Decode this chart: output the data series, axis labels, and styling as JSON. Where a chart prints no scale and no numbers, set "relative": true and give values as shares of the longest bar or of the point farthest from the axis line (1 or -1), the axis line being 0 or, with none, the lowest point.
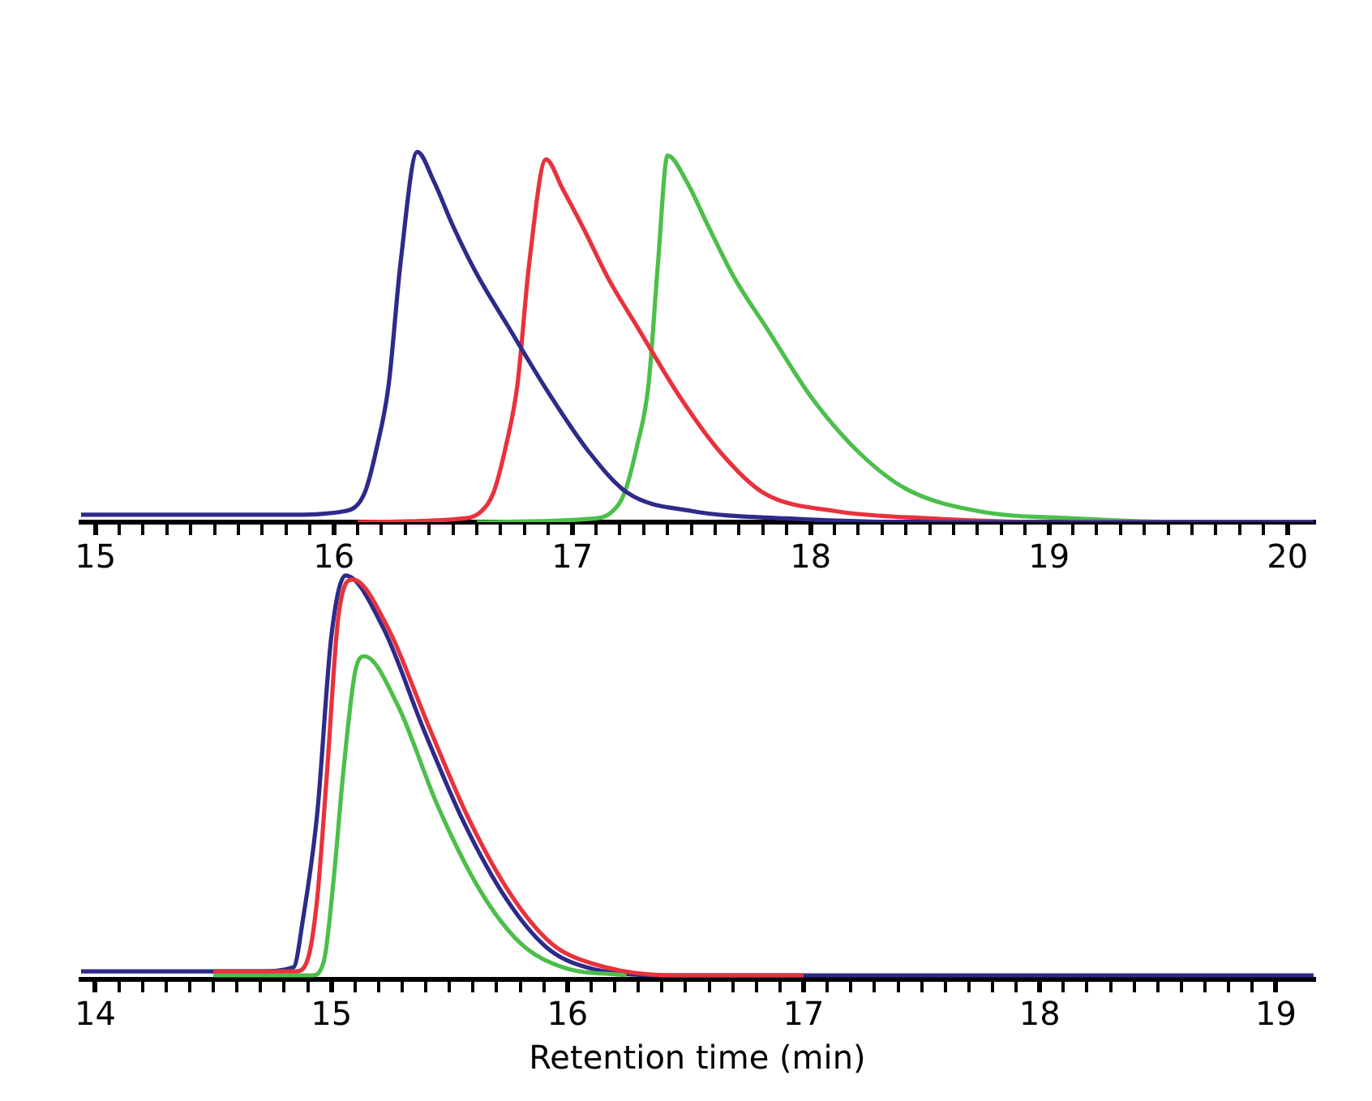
{
  "chart_data": [
    {
      "type": "line",
      "relative": true,
      "grid": false,
      "legend": false,
      "tick_labels": "x",
      "marker": "none",
      "line_style": "solid",
      "xlim": [
        14.94,
        20.11
      ],
      "xticks": [
        15,
        {
          "value": 15.1,
          "label": null
        },
        {
          "value": 15.2,
          "label": null
        },
        {
          "value": 15.3,
          "label": null
        },
        {
          "value": 15.4,
          "label": null
        },
        {
          "value": 15.5,
          "label": null
        },
        {
          "value": 15.6,
          "label": null
        },
        {
          "value": 15.7,
          "label": null
        },
        {
          "value": 15.8,
          "label": null
        },
        {
          "value": 15.9,
          "label": null
        },
        16,
        {
          "value": 16.1,
          "label": null
        },
        {
          "value": 16.2,
          "label": null
        },
        {
          "value": 16.3,
          "label": null
        },
        {
          "value": 16.4,
          "label": null
        },
        {
          "value": 16.5,
          "label": null
        },
        {
          "value": 16.6,
          "label": null
        },
        {
          "value": 16.7,
          "label": null
        },
        {
          "value": 16.8,
          "label": null
        },
        {
          "value": 16.9,
          "label": null
        },
        17,
        {
          "value": 17.1,
          "label": null
        },
        {
          "value": 17.2,
          "label": null
        },
        {
          "value": 17.3,
          "label": null
        },
        {
          "value": 17.4,
          "label": null
        },
        {
          "value": 17.5,
          "label": null
        },
        {
          "value": 17.6,
          "label": null
        },
        {
          "value": 17.7,
          "label": null
        },
        {
          "value": 17.8,
          "label": null
        },
        {
          "value": 17.9,
          "label": null
        },
        18,
        {
          "value": 18.1,
          "label": null
        },
        {
          "value": 18.2,
          "label": null
        },
        {
          "value": 18.3,
          "label": null
        },
        {
          "value": 18.4,
          "label": null
        },
        {
          "value": 18.5,
          "label": null
        },
        {
          "value": 18.6,
          "label": null
        },
        {
          "value": 18.7,
          "label": null
        },
        {
          "value": 18.8,
          "label": null
        },
        {
          "value": 18.9,
          "label": null
        },
        19,
        {
          "value": 19.1,
          "label": null
        },
        {
          "value": 19.2,
          "label": null
        },
        {
          "value": 19.3,
          "label": null
        },
        {
          "value": 19.4,
          "label": null
        },
        {
          "value": 19.5,
          "label": null
        },
        {
          "value": 19.6,
          "label": null
        },
        {
          "value": 19.7,
          "label": null
        },
        {
          "value": 19.8,
          "label": null
        },
        {
          "value": 19.9,
          "label": null
        },
        20
      ],
      "series": [
        {
          "color": "#2e2a8a",
          "x": [
            14.94,
            15.8,
            16.05,
            16.13,
            16.18,
            16.23,
            16.28,
            16.35,
            16.42,
            16.5,
            16.6,
            16.73,
            16.9,
            17.07,
            17.23,
            17.5,
            17.9,
            18.5,
            20.11
          ],
          "values": [
            0.02,
            0.02,
            0.03,
            0.08,
            0.2,
            0.37,
            0.7,
            1.0,
            0.92,
            0.8,
            0.67,
            0.53,
            0.35,
            0.19,
            0.08,
            0.03,
            0.01,
            0.0,
            0.0
          ]
        },
        {
          "color": "#e8323c",
          "x": [
            16.1,
            16.55,
            16.62,
            16.67,
            16.72,
            16.77,
            16.82,
            16.89,
            16.96,
            17.05,
            17.15,
            17.28,
            17.45,
            17.62,
            17.8,
            18.1,
            18.5,
            19.0,
            20.11
          ],
          "values": [
            0.0,
            0.01,
            0.03,
            0.08,
            0.2,
            0.37,
            0.7,
            0.98,
            0.9,
            0.79,
            0.66,
            0.52,
            0.34,
            0.19,
            0.08,
            0.03,
            0.01,
            0.0,
            0.0
          ]
        },
        {
          "color": "#4cbf4a",
          "x": [
            16.6,
            17.1,
            17.17,
            17.22,
            17.27,
            17.32,
            17.36,
            17.4,
            17.48,
            17.57,
            17.68,
            17.82,
            18.0,
            18.2,
            18.4,
            18.7,
            19.1,
            19.6,
            20.11
          ],
          "values": [
            0.0,
            0.01,
            0.03,
            0.08,
            0.2,
            0.37,
            0.7,
            0.99,
            0.92,
            0.8,
            0.66,
            0.52,
            0.34,
            0.19,
            0.09,
            0.03,
            0.01,
            0.0,
            0.0
          ]
        }
      ]
    },
    {
      "type": "line",
      "relative": true,
      "grid": false,
      "legend": false,
      "tick_labels": "x",
      "marker": "none",
      "line_style": "solid",
      "xlabel": "Retention time (min)",
      "xlim": [
        13.94,
        19.16
      ],
      "xticks": [
        14,
        {
          "value": 14.1,
          "label": null
        },
        {
          "value": 14.2,
          "label": null
        },
        {
          "value": 14.3,
          "label": null
        },
        {
          "value": 14.4,
          "label": null
        },
        {
          "value": 14.5,
          "label": null
        },
        {
          "value": 14.6,
          "label": null
        },
        {
          "value": 14.7,
          "label": null
        },
        {
          "value": 14.8,
          "label": null
        },
        {
          "value": 14.9,
          "label": null
        },
        15,
        {
          "value": 15.1,
          "label": null
        },
        {
          "value": 15.2,
          "label": null
        },
        {
          "value": 15.3,
          "label": null
        },
        {
          "value": 15.4,
          "label": null
        },
        {
          "value": 15.5,
          "label": null
        },
        {
          "value": 15.6,
          "label": null
        },
        {
          "value": 15.7,
          "label": null
        },
        {
          "value": 15.8,
          "label": null
        },
        {
          "value": 15.9,
          "label": null
        },
        16,
        {
          "value": 16.1,
          "label": null
        },
        {
          "value": 16.2,
          "label": null
        },
        {
          "value": 16.3,
          "label": null
        },
        {
          "value": 16.4,
          "label": null
        },
        {
          "value": 16.5,
          "label": null
        },
        {
          "value": 16.6,
          "label": null
        },
        {
          "value": 16.7,
          "label": null
        },
        {
          "value": 16.8,
          "label": null
        },
        {
          "value": 16.9,
          "label": null
        },
        17,
        {
          "value": 17.1,
          "label": null
        },
        {
          "value": 17.2,
          "label": null
        },
        {
          "value": 17.3,
          "label": null
        },
        {
          "value": 17.4,
          "label": null
        },
        {
          "value": 17.5,
          "label": null
        },
        {
          "value": 17.6,
          "label": null
        },
        {
          "value": 17.7,
          "label": null
        },
        {
          "value": 17.8,
          "label": null
        },
        {
          "value": 17.9,
          "label": null
        },
        18,
        {
          "value": 18.1,
          "label": null
        },
        {
          "value": 18.2,
          "label": null
        },
        {
          "value": 18.3,
          "label": null
        },
        {
          "value": 18.4,
          "label": null
        },
        {
          "value": 18.5,
          "label": null
        },
        {
          "value": 18.6,
          "label": null
        },
        {
          "value": 18.7,
          "label": null
        },
        {
          "value": 18.8,
          "label": null
        },
        {
          "value": 18.9,
          "label": null
        },
        19
      ],
      "series": [
        {
          "color": "#e8323c",
          "x": [
            14.5,
            14.85,
            14.9,
            14.94,
            14.98,
            15.03,
            15.09,
            15.24,
            15.41,
            15.58,
            15.76,
            15.93,
            16.1,
            16.45,
            17.0
          ],
          "values": [
            0.02,
            0.02,
            0.05,
            0.2,
            0.5,
            0.9,
            0.99,
            0.87,
            0.63,
            0.4,
            0.21,
            0.09,
            0.04,
            0.01,
            0.01
          ]
        },
        {
          "color": "#4cbf4a",
          "x": [
            14.5,
            14.92,
            14.97,
            15.01,
            15.05,
            15.1,
            15.14,
            15.28,
            15.45,
            15.63,
            15.8,
            15.98,
            16.25
          ],
          "values": [
            0.01,
            0.01,
            0.05,
            0.25,
            0.51,
            0.76,
            0.8,
            0.68,
            0.43,
            0.22,
            0.09,
            0.03,
            0.01
          ]
        },
        {
          "color": "#2e2a8a",
          "x": [
            13.94,
            14.7,
            14.84,
            14.88,
            14.94,
            15.0,
            15.06,
            15.22,
            15.39,
            15.56,
            15.74,
            15.91,
            16.08,
            16.43,
            17.0,
            19.16
          ],
          "values": [
            0.02,
            0.02,
            0.03,
            0.15,
            0.41,
            0.85,
            1.0,
            0.87,
            0.62,
            0.39,
            0.2,
            0.08,
            0.03,
            0.01,
            0.01,
            0.01
          ]
        }
      ]
    }
  ]
}
